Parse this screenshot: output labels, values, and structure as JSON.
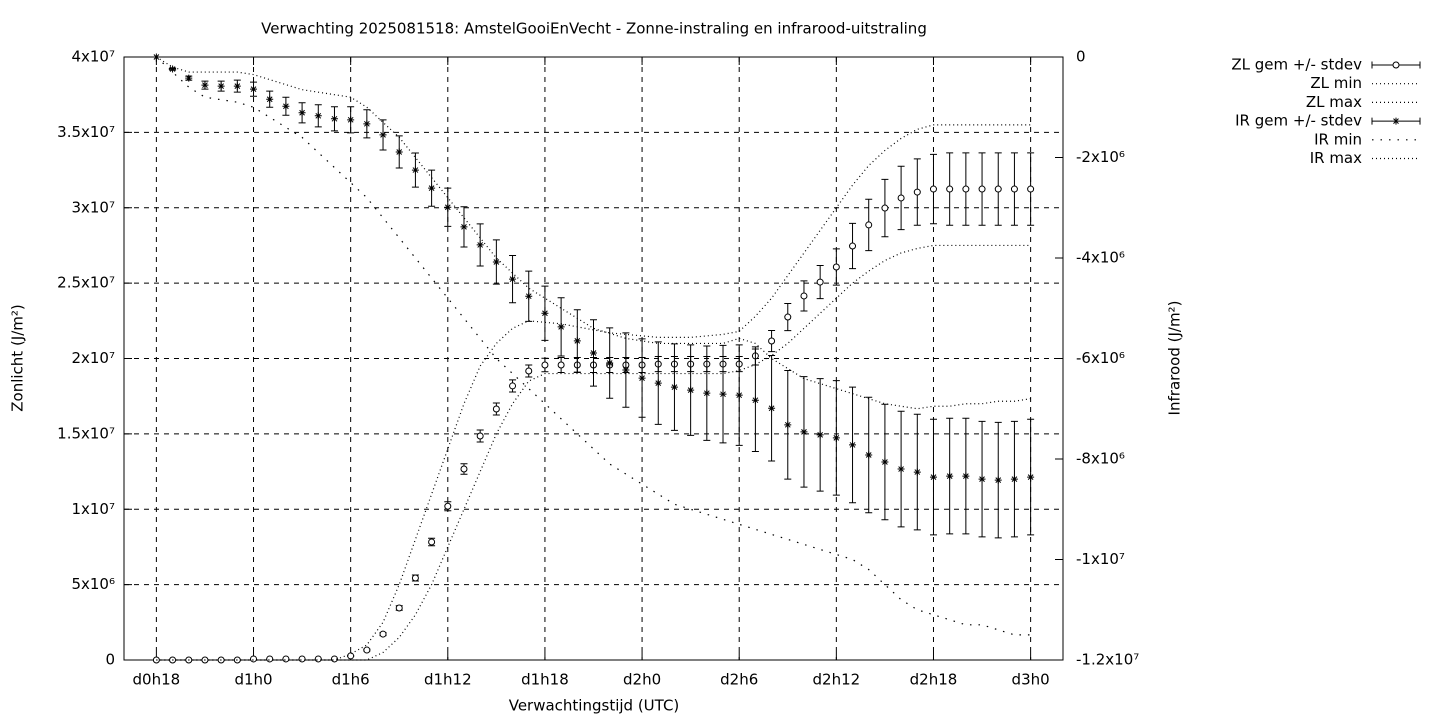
{
  "chart_data": {
    "type": "errorbar-line",
    "title": "Verwachting 2025081518: AmstelGooiEnVecht - Zonne-instraling en infrarood-uitstraling",
    "x_label": "Verwachtingstijd (UTC)",
    "y_label": "Zonlicht (J/m²)",
    "y2_label": "Infrarood (J/m²)",
    "grid": true,
    "legend": "outside-top-right",
    "xlim": [
      -2,
      56
    ],
    "xticks": [
      {
        "value": 0,
        "label": "d0h18"
      },
      {
        "value": 6,
        "label": "d1h0"
      },
      {
        "value": 12,
        "label": "d1h6"
      },
      {
        "value": 18,
        "label": "d1h12"
      },
      {
        "value": 24,
        "label": "d1h18"
      },
      {
        "value": 30,
        "label": "d2h0"
      },
      {
        "value": 36,
        "label": "d2h6"
      },
      {
        "value": 42,
        "label": "d2h12"
      },
      {
        "value": 48,
        "label": "d2h18"
      },
      {
        "value": 54,
        "label": "d3h0"
      }
    ],
    "ylim": [
      0,
      40000000.0
    ],
    "yticks": [
      0,
      {
        "value": 5000000.0,
        "label": "5x10⁶"
      },
      {
        "value": 10000000.0,
        "label": "1x10⁷"
      },
      {
        "value": 15000000.0,
        "label": "1.5x10⁷"
      },
      {
        "value": 20000000.0,
        "label": "2x10⁷"
      },
      {
        "value": 25000000.0,
        "label": "2.5x10⁷"
      },
      {
        "value": 30000000.0,
        "label": "3x10⁷"
      },
      {
        "value": 35000000.0,
        "label": "3.5x10⁷"
      },
      {
        "value": 40000000.0,
        "label": "4x10⁷"
      }
    ],
    "y2lim": [
      -12000000.0,
      0
    ],
    "y2ticks": [
      0,
      {
        "value": -2000000.0,
        "label": "-2x10⁶"
      },
      {
        "value": -4000000.0,
        "label": "-4x10⁶"
      },
      {
        "value": -6000000.0,
        "label": "-6x10⁶"
      },
      {
        "value": -8000000.0,
        "label": "-8x10⁶"
      },
      {
        "value": -10000000.0,
        "label": "-1x10⁷"
      },
      {
        "value": -12000000.0,
        "label": "-1.2x10⁷"
      }
    ],
    "x": [
      0,
      1,
      2,
      3,
      4,
      5,
      6,
      7,
      8,
      9,
      10,
      11,
      12,
      13,
      14,
      15,
      16,
      17,
      18,
      19,
      20,
      21,
      22,
      23,
      24,
      25,
      26,
      27,
      28,
      29,
      30,
      31,
      32,
      33,
      34,
      35,
      36,
      37,
      38,
      39,
      40,
      41,
      42,
      43,
      44,
      45,
      46,
      47,
      48,
      49,
      50,
      51,
      52,
      53,
      54
    ],
    "series": [
      {
        "name": "ZL gem +/- stdev",
        "color": "#000000",
        "axis": "y",
        "marker": "circle",
        "values": [
          0,
          0,
          0,
          0,
          0,
          0,
          70000.0,
          70000.0,
          70000.0,
          70000.0,
          70000.0,
          70000.0,
          270000.0,
          660000.0,
          1720000.0,
          3450000.0,
          5440000.0,
          7830000.0,
          10200000.0,
          12670000.0,
          14860000.0,
          16650000.0,
          18180000.0,
          19170000.0,
          19570000.0,
          19570000.0,
          19570000.0,
          19570000.0,
          19570000.0,
          19570000.0,
          19570000.0,
          19630000.0,
          19630000.0,
          19630000.0,
          19630000.0,
          19630000.0,
          19630000.0,
          20170000.0,
          21160000.0,
          22750000.0,
          24150000.0,
          25070000.0,
          26070000.0,
          27460000.0,
          28860000.0,
          29980000.0,
          30650000.0,
          31040000.0,
          31240000.0,
          31240000.0,
          31240000.0,
          31240000.0,
          31240000.0,
          31240000.0,
          31240000.0
        ],
        "errors": [
          0,
          0,
          0,
          0,
          0,
          0,
          0,
          0,
          0,
          0,
          0,
          0,
          30000.0,
          60000.0,
          100000.0,
          150000.0,
          200000.0,
          250000.0,
          300000.0,
          350000.0,
          400000.0,
          400000.0,
          400000.0,
          400000.0,
          450000.0,
          500000.0,
          500000.0,
          500000.0,
          500000.0,
          500000.0,
          500000.0,
          500000.0,
          500000.0,
          500000.0,
          500000.0,
          500000.0,
          500000.0,
          600000.0,
          700000.0,
          900000.0,
          1000000.0,
          1100000.0,
          1200000.0,
          1500000.0,
          1700000.0,
          1900000.0,
          2100000.0,
          2200000.0,
          2300000.0,
          2400000.0,
          2400000.0,
          2400000.0,
          2400000.0,
          2400000.0,
          2400000.0
        ]
      },
      {
        "name": "ZL min",
        "color": "#000000",
        "axis": "y",
        "style": "dotted",
        "values": [
          0,
          0,
          0,
          0,
          0,
          0,
          0,
          0,
          0,
          0,
          0,
          0,
          0,
          0,
          500000.0,
          1500000.0,
          3000000.0,
          5000000.0,
          7500000.0,
          10000000.0,
          12500000.0,
          15000000.0,
          17000000.0,
          18500000.0,
          19000000.0,
          19000000.0,
          19000000.0,
          19000000.0,
          19000000.0,
          19000000.0,
          19000000.0,
          19000000.0,
          19000000.0,
          19000000.0,
          19000000.0,
          19000000.0,
          19200000.0,
          19600000.0,
          20200000.0,
          21000000.0,
          22000000.0,
          23000000.0,
          24000000.0,
          25000000.0,
          25800000.0,
          26500000.0,
          27000000.0,
          27300000.0,
          27500000.0,
          27500000.0,
          27500000.0,
          27500000.0,
          27500000.0,
          27500000.0,
          27500000.0
        ]
      },
      {
        "name": "ZL max",
        "color": "#000000",
        "axis": "y",
        "style": "dotted",
        "values": [
          0,
          0,
          0,
          0,
          0,
          0,
          0,
          0,
          0,
          0,
          0,
          0,
          400000.0,
          1000000.0,
          2500000.0,
          5000000.0,
          8000000.0,
          11000000.0,
          14000000.0,
          17000000.0,
          19500000.0,
          21000000.0,
          22000000.0,
          22500000.0,
          22400000.0,
          22300000.0,
          22100000.0,
          21900000.0,
          21700000.0,
          21600000.0,
          21500000.0,
          21400000.0,
          21400000.0,
          21400000.0,
          21500000.0,
          21600000.0,
          21800000.0,
          22800000.0,
          24000000.0,
          25500000.0,
          27000000.0,
          28500000.0,
          30000000.0,
          31500000.0,
          32800000.0,
          33800000.0,
          34600000.0,
          35200000.0,
          35500000.0,
          35500000.0,
          35500000.0,
          35500000.0,
          35500000.0,
          35500000.0,
          35500000.0
        ]
      },
      {
        "name": "IR gem +/- stdev",
        "color": "#000000",
        "axis": "y2",
        "marker": "star",
        "values": [
          0,
          -240000.0,
          -420000.0,
          -560000.0,
          -580000.0,
          -580000.0,
          -640000.0,
          -840000.0,
          -980000.0,
          -1110000.0,
          -1170000.0,
          -1230000.0,
          -1250000.0,
          -1330000.0,
          -1550000.0,
          -1890000.0,
          -2250000.0,
          -2610000.0,
          -2990000.0,
          -3380000.0,
          -3740000.0,
          -4080000.0,
          -4420000.0,
          -4760000.0,
          -5100000.0,
          -5370000.0,
          -5650000.0,
          -5890000.0,
          -6090000.0,
          -6230000.0,
          -6390000.0,
          -6490000.0,
          -6570000.0,
          -6630000.0,
          -6690000.0,
          -6710000.0,
          -6730000.0,
          -6830000.0,
          -6990000.0,
          -7320000.0,
          -7460000.0,
          -7520000.0,
          -7580000.0,
          -7720000.0,
          -7920000.0,
          -8060000.0,
          -8200000.0,
          -8260000.0,
          -8360000.0,
          -8340000.0,
          -8340000.0,
          -8400000.0,
          -8420000.0,
          -8400000.0,
          -8360000.0
        ],
        "errors": [
          0,
          20000.0,
          40000.0,
          80000.0,
          100000.0,
          120000.0,
          140000.0,
          160000.0,
          180000.0,
          200000.0,
          220000.0,
          240000.0,
          260000.0,
          280000.0,
          300000.0,
          320000.0,
          340000.0,
          360000.0,
          380000.0,
          400000.0,
          420000.0,
          440000.0,
          470000.0,
          500000.0,
          540000.0,
          580000.0,
          620000.0,
          660000.0,
          700000.0,
          740000.0,
          780000.0,
          820000.0,
          860000.0,
          900000.0,
          940000.0,
          970000.0,
          1000000.0,
          1020000.0,
          1050000.0,
          1080000.0,
          1100000.0,
          1120000.0,
          1140000.0,
          1150000.0,
          1150000.0,
          1150000.0,
          1150000.0,
          1150000.0,
          1150000.0,
          1150000.0,
          1150000.0,
          1150000.0,
          1150000.0,
          1150000.0,
          1150000.0
        ]
      },
      {
        "name": "IR min",
        "color": "#000000",
        "axis": "y2",
        "style": "sparse-dotted",
        "values": [
          0,
          -300000.0,
          -600000.0,
          -800000.0,
          -850000.0,
          -900000.0,
          -1000000.0,
          -1200000.0,
          -1400000.0,
          -1600000.0,
          -1900000.0,
          -2200000.0,
          -2500000.0,
          -2800000.0,
          -3200000.0,
          -3600000.0,
          -4000000.0,
          -4400000.0,
          -4800000.0,
          -5200000.0,
          -5600000.0,
          -6000000.0,
          -6300000.0,
          -6600000.0,
          -6900000.0,
          -7200000.0,
          -7500000.0,
          -7800000.0,
          -8100000.0,
          -8300000.0,
          -8500000.0,
          -8700000.0,
          -8900000.0,
          -9000000.0,
          -9100000.0,
          -9200000.0,
          -9300000.0,
          -9400000.0,
          -9500000.0,
          -9600000.0,
          -9700000.0,
          -9800000.0,
          -9900000.0,
          -10000000.0,
          -10200000.0,
          -10500000.0,
          -10800000.0,
          -11000000.0,
          -11100000.0,
          -11200000.0,
          -11300000.0,
          -11300000.0,
          -11400000.0,
          -11500000.0,
          -11500000.0
        ]
      },
      {
        "name": "IR max",
        "color": "#000000",
        "axis": "y2",
        "style": "dotted",
        "values": [
          0,
          -200000.0,
          -300000.0,
          -300000.0,
          -300000.0,
          -300000.0,
          -350000.0,
          -450000.0,
          -550000.0,
          -650000.0,
          -700000.0,
          -750000.0,
          -800000.0,
          -1000000.0,
          -1300000.0,
          -1600000.0,
          -2000000.0,
          -2400000.0,
          -2800000.0,
          -3200000.0,
          -3600000.0,
          -4000000.0,
          -4300000.0,
          -4600000.0,
          -4800000.0,
          -5000000.0,
          -5200000.0,
          -5400000.0,
          -5500000.0,
          -5600000.0,
          -5650000.0,
          -5700000.0,
          -5700000.0,
          -5700000.0,
          -5700000.0,
          -5700000.0,
          -5600000.0,
          -5700000.0,
          -6000000.0,
          -6200000.0,
          -6400000.0,
          -6500000.0,
          -6600000.0,
          -6700000.0,
          -6800000.0,
          -6900000.0,
          -6950000.0,
          -7000000.0,
          -6950000.0,
          -6950000.0,
          -6900000.0,
          -6900000.0,
          -6850000.0,
          -6850000.0,
          -6800000.0
        ]
      }
    ]
  }
}
